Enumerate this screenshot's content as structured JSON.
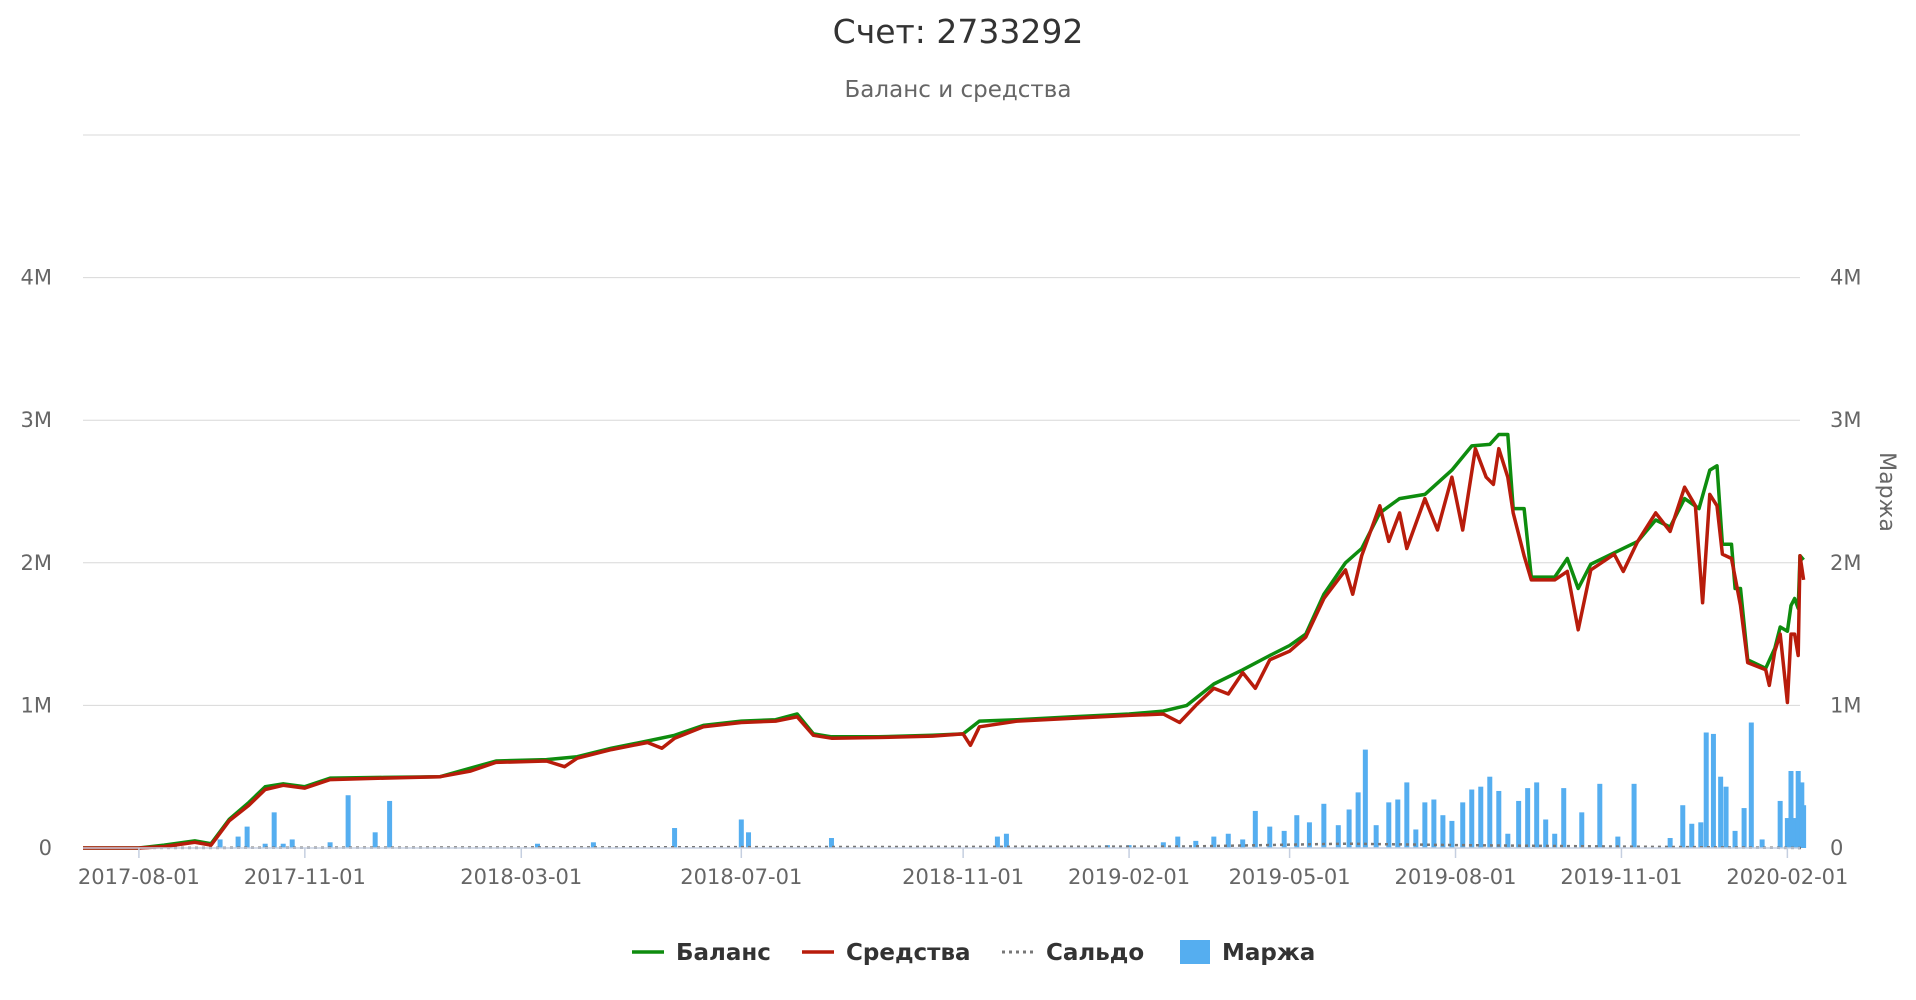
{
  "chart_data": {
    "type": "line",
    "title": "Счет: 2733292",
    "subtitle": "Баланс и средства",
    "yaxis_right_title": "Маржа",
    "x_ticks": [
      "2017-08-01",
      "2017-11-01",
      "2018-03-01",
      "2018-07-01",
      "2018-11-01",
      "2019-02-01",
      "2019-05-01",
      "2019-08-01",
      "2019-11-01",
      "2020-02-01"
    ],
    "x_range": [
      "2017-07-01",
      "2020-02-08"
    ],
    "y_ticks": [
      {
        "value": 0,
        "label": "0"
      },
      {
        "value": 1000000,
        "label": "1M"
      },
      {
        "value": 2000000,
        "label": "2M"
      },
      {
        "value": 3000000,
        "label": "3M"
      },
      {
        "value": 4000000,
        "label": "4M"
      },
      {
        "value": 5000000,
        "label": ""
      }
    ],
    "ylim": [
      0,
      5000000
    ],
    "grid": true,
    "legend_position": "bottom",
    "colors": {
      "balance": "#0e8c0e",
      "equity": "#b81c0b",
      "saldo": "#777777",
      "margin": "#55aef0"
    },
    "series": [
      {
        "name": "Баланс",
        "type": "line",
        "color": "#0e8c0e",
        "points": [
          [
            "2017-07-01",
            0
          ],
          [
            "2017-08-01",
            0
          ],
          [
            "2017-08-15",
            20000
          ],
          [
            "2017-09-01",
            50000
          ],
          [
            "2017-09-10",
            30000
          ],
          [
            "2017-09-20",
            200000
          ],
          [
            "2017-10-01",
            320000
          ],
          [
            "2017-10-10",
            430000
          ],
          [
            "2017-10-20",
            450000
          ],
          [
            "2017-11-01",
            430000
          ],
          [
            "2017-11-15",
            490000
          ],
          [
            "2017-12-15",
            495000
          ],
          [
            "2018-01-15",
            500000
          ],
          [
            "2018-02-01",
            560000
          ],
          [
            "2018-02-15",
            610000
          ],
          [
            "2018-03-15",
            620000
          ],
          [
            "2018-04-01",
            640000
          ],
          [
            "2018-04-20",
            700000
          ],
          [
            "2018-05-10",
            750000
          ],
          [
            "2018-05-25",
            790000
          ],
          [
            "2018-06-10",
            860000
          ],
          [
            "2018-07-01",
            890000
          ],
          [
            "2018-07-20",
            900000
          ],
          [
            "2018-08-01",
            940000
          ],
          [
            "2018-08-10",
            800000
          ],
          [
            "2018-08-20",
            780000
          ],
          [
            "2018-09-15",
            780000
          ],
          [
            "2018-10-15",
            790000
          ],
          [
            "2018-11-01",
            800000
          ],
          [
            "2018-11-10",
            890000
          ],
          [
            "2018-12-01",
            900000
          ],
          [
            "2019-01-01",
            920000
          ],
          [
            "2019-02-01",
            940000
          ],
          [
            "2019-02-20",
            960000
          ],
          [
            "2019-03-05",
            1000000
          ],
          [
            "2019-03-20",
            1150000
          ],
          [
            "2019-04-05",
            1250000
          ],
          [
            "2019-04-20",
            1350000
          ],
          [
            "2019-05-01",
            1420000
          ],
          [
            "2019-05-10",
            1500000
          ],
          [
            "2019-05-20",
            1780000
          ],
          [
            "2019-06-01",
            2000000
          ],
          [
            "2019-06-10",
            2100000
          ],
          [
            "2019-06-20",
            2350000
          ],
          [
            "2019-07-01",
            2450000
          ],
          [
            "2019-07-15",
            2480000
          ],
          [
            "2019-07-30",
            2650000
          ],
          [
            "2019-08-10",
            2820000
          ],
          [
            "2019-08-20",
            2830000
          ],
          [
            "2019-08-25",
            2900000
          ],
          [
            "2019-08-30",
            2900000
          ],
          [
            "2019-09-02",
            2380000
          ],
          [
            "2019-09-08",
            2380000
          ],
          [
            "2019-09-12",
            1900000
          ],
          [
            "2019-09-25",
            1900000
          ],
          [
            "2019-10-02",
            2030000
          ],
          [
            "2019-10-08",
            1820000
          ],
          [
            "2019-10-15",
            1990000
          ],
          [
            "2019-10-28",
            2070000
          ],
          [
            "2019-11-10",
            2150000
          ],
          [
            "2019-11-20",
            2300000
          ],
          [
            "2019-11-28",
            2250000
          ],
          [
            "2019-12-06",
            2450000
          ],
          [
            "2019-12-14",
            2380000
          ],
          [
            "2019-12-20",
            2650000
          ],
          [
            "2019-12-24",
            2680000
          ],
          [
            "2019-12-27",
            2130000
          ],
          [
            "2020-01-01",
            2130000
          ],
          [
            "2020-01-03",
            1820000
          ],
          [
            "2020-01-06",
            1820000
          ],
          [
            "2020-01-10",
            1320000
          ],
          [
            "2020-01-20",
            1260000
          ],
          [
            "2020-01-25",
            1400000
          ],
          [
            "2020-01-28",
            1550000
          ],
          [
            "2020-02-01",
            1520000
          ],
          [
            "2020-02-03",
            1700000
          ],
          [
            "2020-02-05",
            1750000
          ],
          [
            "2020-02-07",
            1680000
          ],
          [
            "2020-02-08",
            2050000
          ],
          [
            "2020-02-10",
            2020000
          ]
        ]
      },
      {
        "name": "Средства",
        "type": "line",
        "color": "#b81c0b",
        "points": [
          [
            "2017-07-01",
            0
          ],
          [
            "2017-08-01",
            0
          ],
          [
            "2017-08-15",
            10000
          ],
          [
            "2017-09-01",
            40000
          ],
          [
            "2017-09-10",
            20000
          ],
          [
            "2017-09-20",
            190000
          ],
          [
            "2017-10-01",
            300000
          ],
          [
            "2017-10-10",
            410000
          ],
          [
            "2017-10-20",
            440000
          ],
          [
            "2017-11-01",
            420000
          ],
          [
            "2017-11-15",
            480000
          ],
          [
            "2017-12-15",
            490000
          ],
          [
            "2018-01-15",
            500000
          ],
          [
            "2018-02-01",
            540000
          ],
          [
            "2018-02-15",
            600000
          ],
          [
            "2018-03-15",
            610000
          ],
          [
            "2018-03-25",
            570000
          ],
          [
            "2018-04-01",
            630000
          ],
          [
            "2018-04-20",
            690000
          ],
          [
            "2018-05-10",
            740000
          ],
          [
            "2018-05-18",
            700000
          ],
          [
            "2018-05-25",
            770000
          ],
          [
            "2018-06-10",
            850000
          ],
          [
            "2018-07-01",
            880000
          ],
          [
            "2018-07-20",
            890000
          ],
          [
            "2018-08-01",
            920000
          ],
          [
            "2018-08-10",
            790000
          ],
          [
            "2018-08-20",
            770000
          ],
          [
            "2018-09-15",
            775000
          ],
          [
            "2018-10-15",
            785000
          ],
          [
            "2018-11-01",
            800000
          ],
          [
            "2018-11-05",
            720000
          ],
          [
            "2018-11-10",
            850000
          ],
          [
            "2018-12-01",
            890000
          ],
          [
            "2019-01-01",
            910000
          ],
          [
            "2019-02-01",
            930000
          ],
          [
            "2019-02-20",
            940000
          ],
          [
            "2019-03-01",
            880000
          ],
          [
            "2019-03-10",
            1000000
          ],
          [
            "2019-03-20",
            1120000
          ],
          [
            "2019-03-28",
            1080000
          ],
          [
            "2019-04-05",
            1230000
          ],
          [
            "2019-04-12",
            1120000
          ],
          [
            "2019-04-20",
            1320000
          ],
          [
            "2019-05-01",
            1380000
          ],
          [
            "2019-05-10",
            1480000
          ],
          [
            "2019-05-20",
            1750000
          ],
          [
            "2019-06-01",
            1950000
          ],
          [
            "2019-06-05",
            1780000
          ],
          [
            "2019-06-10",
            2050000
          ],
          [
            "2019-06-20",
            2400000
          ],
          [
            "2019-06-25",
            2150000
          ],
          [
            "2019-07-01",
            2350000
          ],
          [
            "2019-07-05",
            2100000
          ],
          [
            "2019-07-15",
            2450000
          ],
          [
            "2019-07-22",
            2230000
          ],
          [
            "2019-07-30",
            2600000
          ],
          [
            "2019-08-05",
            2230000
          ],
          [
            "2019-08-12",
            2800000
          ],
          [
            "2019-08-18",
            2600000
          ],
          [
            "2019-08-22",
            2550000
          ],
          [
            "2019-08-25",
            2800000
          ],
          [
            "2019-08-30",
            2600000
          ],
          [
            "2019-09-02",
            2350000
          ],
          [
            "2019-09-08",
            2050000
          ],
          [
            "2019-09-12",
            1880000
          ],
          [
            "2019-09-25",
            1880000
          ],
          [
            "2019-10-02",
            1940000
          ],
          [
            "2019-10-08",
            1530000
          ],
          [
            "2019-10-15",
            1950000
          ],
          [
            "2019-10-28",
            2060000
          ],
          [
            "2019-11-02",
            1940000
          ],
          [
            "2019-11-10",
            2150000
          ],
          [
            "2019-11-20",
            2350000
          ],
          [
            "2019-11-28",
            2220000
          ],
          [
            "2019-12-06",
            2530000
          ],
          [
            "2019-12-12",
            2400000
          ],
          [
            "2019-12-16",
            1720000
          ],
          [
            "2019-12-20",
            2480000
          ],
          [
            "2019-12-24",
            2400000
          ],
          [
            "2019-12-27",
            2060000
          ],
          [
            "2020-01-01",
            2030000
          ],
          [
            "2020-01-06",
            1700000
          ],
          [
            "2020-01-10",
            1300000
          ],
          [
            "2020-01-20",
            1250000
          ],
          [
            "2020-01-22",
            1140000
          ],
          [
            "2020-01-25",
            1380000
          ],
          [
            "2020-01-28",
            1500000
          ],
          [
            "2020-02-01",
            1020000
          ],
          [
            "2020-02-03",
            1500000
          ],
          [
            "2020-02-05",
            1500000
          ],
          [
            "2020-02-07",
            1350000
          ],
          [
            "2020-02-08",
            2050000
          ],
          [
            "2020-02-10",
            1880000
          ]
        ]
      },
      {
        "name": "Сальдо",
        "type": "line",
        "dashed": true,
        "color": "#777777",
        "points": [
          [
            "2017-07-01",
            0
          ],
          [
            "2019-03-01",
            10000
          ],
          [
            "2019-06-01",
            30000
          ],
          [
            "2019-08-01",
            20000
          ],
          [
            "2019-11-01",
            10000
          ],
          [
            "2020-02-10",
            0
          ]
        ]
      },
      {
        "name": "Маржа",
        "type": "bar",
        "color": "#55aef0",
        "points": [
          [
            "2017-09-15",
            60000
          ],
          [
            "2017-09-25",
            80000
          ],
          [
            "2017-09-30",
            150000
          ],
          [
            "2017-10-10",
            30000
          ],
          [
            "2017-10-15",
            250000
          ],
          [
            "2017-10-20",
            30000
          ],
          [
            "2017-10-25",
            60000
          ],
          [
            "2017-11-15",
            40000
          ],
          [
            "2017-11-25",
            370000
          ],
          [
            "2017-12-10",
            110000
          ],
          [
            "2017-12-18",
            330000
          ],
          [
            "2018-03-10",
            30000
          ],
          [
            "2018-04-10",
            40000
          ],
          [
            "2018-05-25",
            140000
          ],
          [
            "2018-07-01",
            200000
          ],
          [
            "2018-07-05",
            110000
          ],
          [
            "2018-08-20",
            70000
          ],
          [
            "2018-11-20",
            80000
          ],
          [
            "2018-11-25",
            100000
          ],
          [
            "2019-01-20",
            20000
          ],
          [
            "2019-02-01",
            20000
          ],
          [
            "2019-02-20",
            40000
          ],
          [
            "2019-02-28",
            80000
          ],
          [
            "2019-03-10",
            50000
          ],
          [
            "2019-03-20",
            80000
          ],
          [
            "2019-03-28",
            100000
          ],
          [
            "2019-04-05",
            60000
          ],
          [
            "2019-04-12",
            260000
          ],
          [
            "2019-04-20",
            150000
          ],
          [
            "2019-04-28",
            120000
          ],
          [
            "2019-05-05",
            230000
          ],
          [
            "2019-05-12",
            180000
          ],
          [
            "2019-05-20",
            310000
          ],
          [
            "2019-05-28",
            160000
          ],
          [
            "2019-06-03",
            270000
          ],
          [
            "2019-06-08",
            390000
          ],
          [
            "2019-06-12",
            690000
          ],
          [
            "2019-06-18",
            160000
          ],
          [
            "2019-06-25",
            320000
          ],
          [
            "2019-06-30",
            340000
          ],
          [
            "2019-07-05",
            460000
          ],
          [
            "2019-07-10",
            130000
          ],
          [
            "2019-07-15",
            320000
          ],
          [
            "2019-07-20",
            340000
          ],
          [
            "2019-07-25",
            230000
          ],
          [
            "2019-07-30",
            190000
          ],
          [
            "2019-08-05",
            320000
          ],
          [
            "2019-08-10",
            410000
          ],
          [
            "2019-08-15",
            430000
          ],
          [
            "2019-08-20",
            500000
          ],
          [
            "2019-08-25",
            400000
          ],
          [
            "2019-08-30",
            100000
          ],
          [
            "2019-09-05",
            330000
          ],
          [
            "2019-09-10",
            420000
          ],
          [
            "2019-09-15",
            460000
          ],
          [
            "2019-09-20",
            200000
          ],
          [
            "2019-09-25",
            100000
          ],
          [
            "2019-09-30",
            420000
          ],
          [
            "2019-10-10",
            250000
          ],
          [
            "2019-10-20",
            450000
          ],
          [
            "2019-10-30",
            80000
          ],
          [
            "2019-11-08",
            450000
          ],
          [
            "2019-11-28",
            70000
          ],
          [
            "2019-12-05",
            300000
          ],
          [
            "2019-12-10",
            170000
          ],
          [
            "2019-12-15",
            180000
          ],
          [
            "2019-12-18",
            810000
          ],
          [
            "2019-12-22",
            800000
          ],
          [
            "2019-12-26",
            500000
          ],
          [
            "2019-12-29",
            430000
          ],
          [
            "2020-01-03",
            120000
          ],
          [
            "2020-01-08",
            280000
          ],
          [
            "2020-01-12",
            880000
          ],
          [
            "2020-01-18",
            60000
          ],
          [
            "2020-01-28",
            330000
          ],
          [
            "2020-02-01",
            210000
          ],
          [
            "2020-02-03",
            540000
          ],
          [
            "2020-02-05",
            210000
          ],
          [
            "2020-02-07",
            540000
          ],
          [
            "2020-02-09",
            460000
          ],
          [
            "2020-02-10",
            300000
          ]
        ]
      }
    ]
  }
}
